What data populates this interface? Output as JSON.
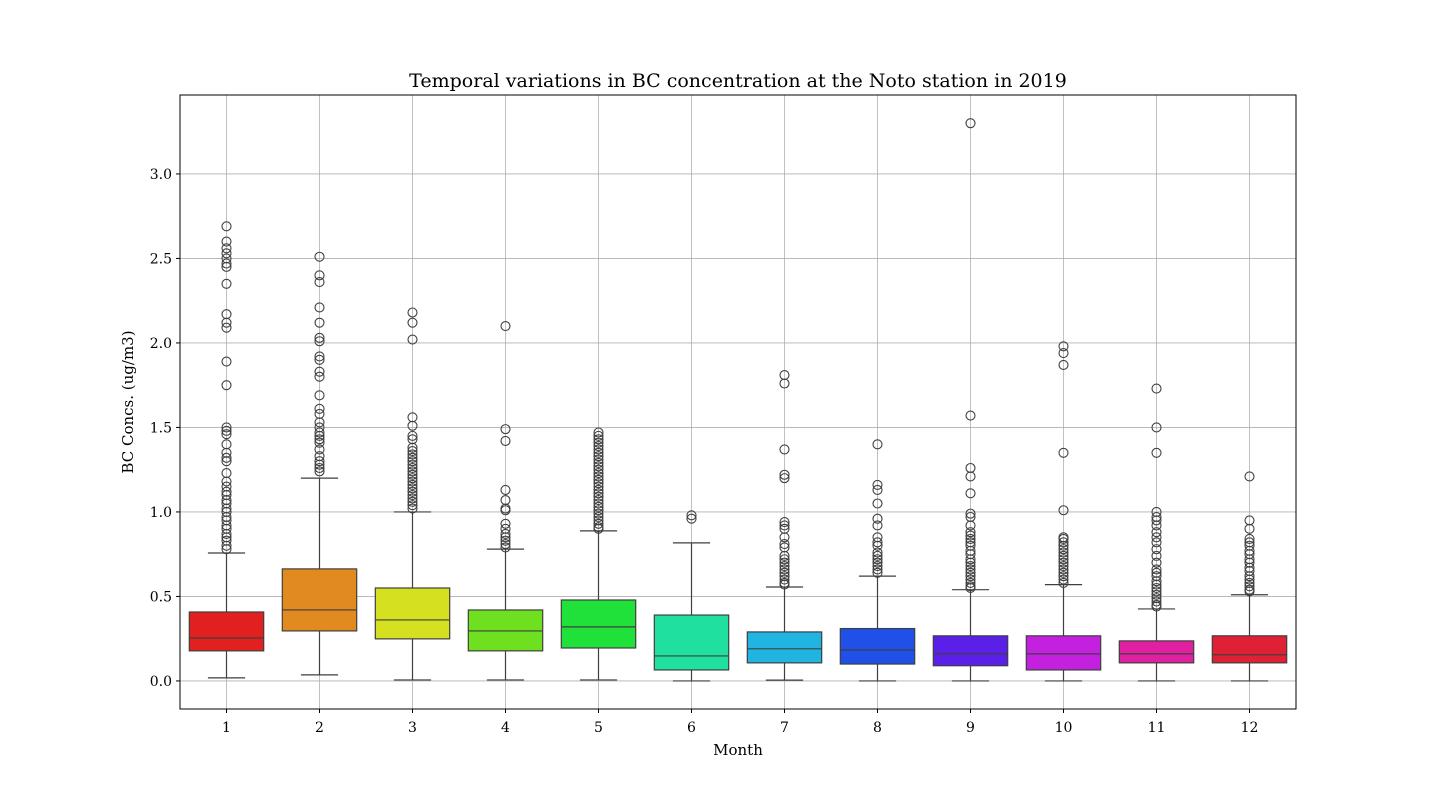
{
  "chart_data": {
    "type": "box",
    "title": "Temporal variations in BC concentration at the Noto station in 2019",
    "xlabel": "Month",
    "ylabel": "BC Concs. (ug/m3)",
    "ylim": [
      -0.166,
      3.467
    ],
    "yticks": [
      0.0,
      0.5,
      1.0,
      1.5,
      2.0,
      2.5,
      3.0
    ],
    "ytick_labels": [
      "0.0",
      "0.5",
      "1.0",
      "1.5",
      "2.0",
      "2.5",
      "3.0"
    ],
    "grid": true,
    "categories": [
      "1",
      "2",
      "3",
      "4",
      "5",
      "6",
      "7",
      "8",
      "9",
      "10",
      "11",
      "12"
    ],
    "colors": [
      "#e32020",
      "#e08a20",
      "#d4e020",
      "#6ee020",
      "#20e03a",
      "#20e0a0",
      "#20b4e0",
      "#2050e8",
      "#5a20e8",
      "#c420e0",
      "#e020a0",
      "#e02034"
    ],
    "boxes": [
      {
        "month": "1",
        "whislo": 0.018,
        "q1": 0.178,
        "median": 0.254,
        "q3": 0.408,
        "whishi": 0.757,
        "outliers": [
          2.69,
          2.6,
          2.56,
          2.53,
          2.5,
          2.47,
          2.45,
          2.35,
          2.17,
          2.12,
          2.09,
          1.89,
          1.75,
          1.5,
          1.48,
          1.46,
          1.4,
          1.35,
          1.32,
          1.3,
          1.23,
          1.18,
          1.15,
          1.12,
          1.1,
          1.07,
          1.05,
          1.02,
          1.0,
          0.97,
          0.95,
          0.92,
          0.9,
          0.87,
          0.85,
          0.83,
          0.8,
          0.78
        ]
      },
      {
        "month": "2",
        "whislo": 0.036,
        "q1": 0.296,
        "median": 0.42,
        "q3": 0.663,
        "whishi": 1.2,
        "outliers": [
          2.51,
          2.4,
          2.36,
          2.21,
          2.12,
          2.03,
          2.01,
          1.92,
          1.9,
          1.83,
          1.8,
          1.69,
          1.61,
          1.58,
          1.53,
          1.5,
          1.47,
          1.45,
          1.43,
          1.41,
          1.37,
          1.33,
          1.3,
          1.28,
          1.26,
          1.24
        ]
      },
      {
        "month": "3",
        "whislo": 0.006,
        "q1": 0.249,
        "median": 0.361,
        "q3": 0.55,
        "whishi": 1.0,
        "outliers": [
          2.18,
          2.12,
          2.02,
          1.56,
          1.51,
          1.45,
          1.43,
          1.38,
          1.36,
          1.34,
          1.32,
          1.3,
          1.28,
          1.26,
          1.24,
          1.22,
          1.2,
          1.18,
          1.16,
          1.14,
          1.12,
          1.1,
          1.08,
          1.06,
          1.04,
          1.02
        ]
      },
      {
        "month": "4",
        "whislo": 0.006,
        "q1": 0.178,
        "median": 0.296,
        "q3": 0.42,
        "whishi": 0.78,
        "outliers": [
          2.1,
          1.49,
          1.42,
          1.13,
          1.07,
          1.02,
          1.01,
          0.93,
          0.9,
          0.87,
          0.85,
          0.83,
          0.81,
          0.79
        ]
      },
      {
        "month": "5",
        "whislo": 0.006,
        "q1": 0.195,
        "median": 0.32,
        "q3": 0.479,
        "whishi": 0.888,
        "outliers": [
          1.47,
          1.45,
          1.43,
          1.41,
          1.39,
          1.37,
          1.35,
          1.33,
          1.31,
          1.29,
          1.27,
          1.25,
          1.23,
          1.21,
          1.19,
          1.17,
          1.15,
          1.13,
          1.11,
          1.09,
          1.07,
          1.05,
          1.03,
          1.01,
          0.99,
          0.97,
          0.95,
          0.93,
          0.91,
          0.9
        ]
      },
      {
        "month": "6",
        "whislo": 0.0,
        "q1": 0.065,
        "median": 0.148,
        "q3": 0.39,
        "whishi": 0.817,
        "outliers": [
          0.98,
          0.96
        ]
      },
      {
        "month": "7",
        "whislo": 0.005,
        "q1": 0.107,
        "median": 0.19,
        "q3": 0.29,
        "whishi": 0.556,
        "outliers": [
          1.81,
          1.76,
          1.37,
          1.22,
          1.2,
          0.94,
          0.92,
          0.9,
          0.85,
          0.81,
          0.79,
          0.74,
          0.72,
          0.7,
          0.68,
          0.66,
          0.64,
          0.62,
          0.6,
          0.58,
          0.57
        ]
      },
      {
        "month": "8",
        "whislo": 0.0,
        "q1": 0.1,
        "median": 0.183,
        "q3": 0.31,
        "whishi": 0.62,
        "outliers": [
          1.4,
          1.16,
          1.13,
          1.05,
          0.96,
          0.92,
          0.85,
          0.82,
          0.8,
          0.76,
          0.74,
          0.72,
          0.7,
          0.68,
          0.66,
          0.64
        ]
      },
      {
        "month": "9",
        "whislo": 0.0,
        "q1": 0.09,
        "median": 0.16,
        "q3": 0.267,
        "whishi": 0.54,
        "outliers": [
          3.3,
          1.57,
          1.26,
          1.21,
          1.11,
          0.99,
          0.97,
          0.92,
          0.88,
          0.86,
          0.84,
          0.82,
          0.8,
          0.77,
          0.75,
          0.72,
          0.7,
          0.68,
          0.66,
          0.64,
          0.62,
          0.6,
          0.58,
          0.56,
          0.55
        ]
      },
      {
        "month": "10",
        "whislo": 0.0,
        "q1": 0.065,
        "median": 0.16,
        "q3": 0.267,
        "whishi": 0.57,
        "outliers": [
          1.98,
          1.94,
          1.87,
          1.35,
          1.01,
          0.85,
          0.84,
          0.82,
          0.8,
          0.78,
          0.76,
          0.74,
          0.72,
          0.7,
          0.68,
          0.66,
          0.64,
          0.62,
          0.6,
          0.58
        ]
      },
      {
        "month": "11",
        "whislo": 0.0,
        "q1": 0.107,
        "median": 0.16,
        "q3": 0.237,
        "whishi": 0.426,
        "outliers": [
          1.73,
          1.5,
          1.35,
          1.0,
          0.97,
          0.95,
          0.92,
          0.88,
          0.85,
          0.82,
          0.78,
          0.74,
          0.7,
          0.66,
          0.64,
          0.62,
          0.59,
          0.57,
          0.55,
          0.53,
          0.51,
          0.49,
          0.47,
          0.45,
          0.44
        ]
      },
      {
        "month": "12",
        "whislo": 0.0,
        "q1": 0.107,
        "median": 0.155,
        "q3": 0.267,
        "whishi": 0.51,
        "outliers": [
          1.21,
          0.95,
          0.9,
          0.84,
          0.82,
          0.8,
          0.77,
          0.75,
          0.72,
          0.7,
          0.67,
          0.65,
          0.62,
          0.6,
          0.58,
          0.56,
          0.54,
          0.53
        ]
      }
    ]
  }
}
